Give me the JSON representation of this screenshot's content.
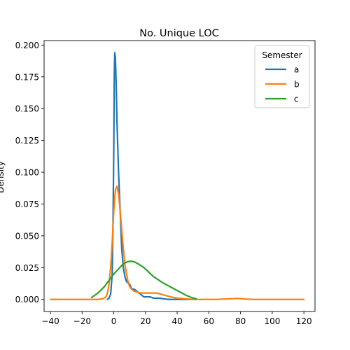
{
  "chart_data": {
    "type": "line",
    "title": "No. Unique LOC",
    "xlabel": "",
    "ylabel": "Density",
    "xlim": [
      -44,
      127
    ],
    "ylim": [
      -0.0095,
      0.2035
    ],
    "xticks": [
      -40,
      -20,
      0,
      20,
      40,
      60,
      80,
      100,
      120
    ],
    "yticks": [
      0.0,
      0.025,
      0.05,
      0.075,
      0.1,
      0.125,
      0.15,
      0.175,
      0.2
    ],
    "xtick_labels": [
      "−40",
      "−20",
      "0",
      "20",
      "40",
      "60",
      "80",
      "100",
      "120"
    ],
    "ytick_labels": [
      "0.000",
      "0.025",
      "0.050",
      "0.075",
      "0.100",
      "0.125",
      "0.150",
      "0.175",
      "0.200"
    ],
    "grid": false,
    "legend": {
      "title": "Semester",
      "position": "top-right"
    },
    "series": [
      {
        "name": "a",
        "color": "#1f77b4",
        "x": [
          -4,
          -3,
          -2,
          -1,
          -0.5,
          0,
          0.3,
          0.6,
          1,
          1.5,
          2,
          3,
          4,
          5,
          6,
          7,
          8,
          9,
          10,
          11,
          12,
          13,
          15,
          17,
          19,
          21,
          23,
          25,
          27,
          29,
          31,
          35,
          40,
          50
        ],
        "y": [
          0.0,
          0.001,
          0.004,
          0.02,
          0.06,
          0.12,
          0.175,
          0.194,
          0.19,
          0.17,
          0.14,
          0.1,
          0.07,
          0.04,
          0.025,
          0.018,
          0.014,
          0.013,
          0.012,
          0.009,
          0.008,
          0.008,
          0.006,
          0.004,
          0.002,
          0.002,
          0.002,
          0.001,
          0.001,
          0.001,
          0.0005,
          0.0,
          0.0,
          0.0
        ]
      },
      {
        "name": "b",
        "color": "#ff7f0e",
        "x": [
          -40,
          -30,
          -20,
          -15,
          -10,
          -7,
          -5,
          -4,
          -3,
          -2,
          -1,
          0,
          1,
          2,
          3,
          4,
          5,
          6,
          7,
          8,
          9,
          10,
          12,
          14,
          17,
          20,
          24,
          27,
          30,
          33,
          36,
          40,
          45,
          50,
          55,
          60,
          65,
          70,
          75,
          78,
          80,
          83,
          88,
          95,
          100,
          110,
          120
        ],
        "y": [
          0.0,
          0.0,
          0.0,
          0.0,
          0.0,
          0.0005,
          0.002,
          0.005,
          0.012,
          0.025,
          0.045,
          0.07,
          0.086,
          0.089,
          0.083,
          0.07,
          0.055,
          0.04,
          0.028,
          0.02,
          0.014,
          0.01,
          0.007,
          0.006,
          0.005,
          0.005,
          0.005,
          0.005,
          0.004,
          0.003,
          0.002,
          0.001,
          0.0005,
          0.0,
          0.0,
          0.0,
          0.0,
          0.0003,
          0.0006,
          0.0008,
          0.0006,
          0.0003,
          0.0,
          0.0,
          0.0,
          0.0,
          0.0
        ]
      },
      {
        "name": "c",
        "color": "#2ca02c",
        "x": [
          -14,
          -10,
          -6,
          -3,
          0,
          3,
          6,
          9,
          11,
          13,
          16,
          19,
          22,
          25,
          28,
          31,
          34,
          37,
          40,
          43,
          46,
          49,
          52
        ],
        "y": [
          0.0015,
          0.005,
          0.01,
          0.015,
          0.02,
          0.024,
          0.028,
          0.0298,
          0.03,
          0.0295,
          0.0275,
          0.025,
          0.0215,
          0.018,
          0.0155,
          0.013,
          0.011,
          0.009,
          0.007,
          0.005,
          0.003,
          0.0015,
          0.0005
        ]
      }
    ]
  }
}
